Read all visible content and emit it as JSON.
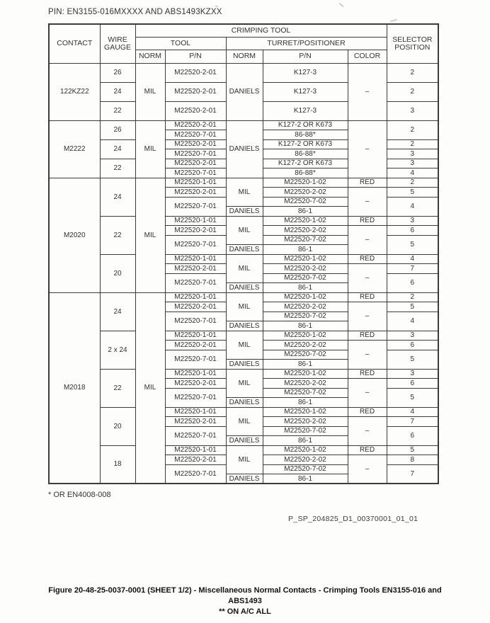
{
  "page": {
    "pin_label": "PIN: EN3155-016MXXXX AND ABS1493KZXX",
    "footnote": "* OR EN4008-008",
    "reference": "P_SP_204825_D1_00370001_01_01",
    "caption_line1": "Figure 20-48-25-0037-0001 (SHEET 1/2) - Miscellaneous Normal Contacts - Crimping Tools EN3155-016 and",
    "caption_line2": "ABS1493",
    "caption_line3": "** ON A/C ALL"
  },
  "table": {
    "header_rows": [
      {
        "h": 18,
        "cells": [
          {
            "t": "CONTACT",
            "rs": 3
          },
          {
            "t": "WIRE\nGAUGE",
            "rs": 3
          },
          {
            "t": "CRIMPING TOOL",
            "cs": 5
          },
          {
            "t": "SELECTOR\nPOSITION",
            "rs": 3
          }
        ]
      },
      {
        "h": 18,
        "cells": [
          {
            "t": "TOOL",
            "cs": 2
          },
          {
            "t": "TURRET/POSITIONER",
            "cs": 3
          }
        ]
      },
      {
        "h": 19,
        "cells": [
          {
            "t": "NORM"
          },
          {
            "t": "P/N"
          },
          {
            "t": "NORM"
          },
          {
            "t": "P/N"
          },
          {
            "t": "COLOR"
          }
        ]
      }
    ],
    "body_rows": [
      {
        "h": 27,
        "cells": [
          {
            "t": "122KZ22",
            "rs": 3
          },
          {
            "t": "26"
          },
          {
            "t": "MIL",
            "rs": 3
          },
          {
            "t": "M22520-2-01"
          },
          {
            "t": "DANIELS",
            "rs": 3
          },
          {
            "t": "K127-3"
          },
          {
            "t": "–",
            "rs": 3
          },
          {
            "t": "2"
          }
        ]
      },
      {
        "h": 27,
        "cells": [
          {
            "t": "24"
          },
          {
            "t": "M22520-2-01"
          },
          {
            "t": "K127-3"
          },
          {
            "t": "2"
          }
        ]
      },
      {
        "h": 27,
        "cells": [
          {
            "t": "22"
          },
          {
            "t": "M22520-2-01"
          },
          {
            "t": "K127-3"
          },
          {
            "t": "3"
          }
        ]
      },
      {
        "cells": [
          {
            "t": "M2222",
            "rs": 6
          },
          {
            "t": "26",
            "rs": 2
          },
          {
            "t": "MIL",
            "rs": 6
          },
          {
            "t": "M22520-2-01"
          },
          {
            "t": "DANIELS",
            "rs": 6
          },
          {
            "t": "K127-2 OR K673"
          },
          {
            "t": "–",
            "rs": 6
          },
          {
            "t": "2",
            "rs": 2
          }
        ]
      },
      {
        "cells": [
          {
            "t": "M22520-7-01"
          },
          {
            "t": "86-88*"
          }
        ]
      },
      {
        "cells": [
          {
            "t": "24",
            "rs": 2
          },
          {
            "t": "M22520-2-01"
          },
          {
            "t": "K127-2 OR K673"
          },
          {
            "t": "2"
          }
        ]
      },
      {
        "cells": [
          {
            "t": "M22520-7-01"
          },
          {
            "t": "86-88*"
          },
          {
            "t": "3"
          }
        ]
      },
      {
        "cells": [
          {
            "t": "22",
            "rs": 2
          },
          {
            "t": "M22520-2-01"
          },
          {
            "t": "K127-2 OR K673"
          },
          {
            "t": "3"
          }
        ]
      },
      {
        "cells": [
          {
            "t": "M22520-7-01"
          },
          {
            "t": "86-88*"
          },
          {
            "t": "4"
          }
        ]
      },
      {
        "cells": [
          {
            "t": "M2020",
            "rs": 12
          },
          {
            "t": "24",
            "rs": 4
          },
          {
            "t": "MIL",
            "rs": 12
          },
          {
            "t": "M22520-1-01"
          },
          {
            "t": "MIL",
            "rs": 3
          },
          {
            "t": "M22520-1-02"
          },
          {
            "t": "RED"
          },
          {
            "t": "2"
          }
        ]
      },
      {
        "cells": [
          {
            "t": "M22520-2-01"
          },
          {
            "t": "M22520-2-02"
          },
          {
            "t": "–",
            "rs": 3
          },
          {
            "t": "5"
          }
        ]
      },
      {
        "cells": [
          {
            "t": "M22520-7-01",
            "rs": 2
          },
          {
            "t": "M22520-7-02"
          },
          {
            "t": "4",
            "rs": 2
          }
        ]
      },
      {
        "cells": [
          {
            "t": "DANIELS"
          },
          {
            "t": "86-1"
          }
        ]
      },
      {
        "cells": [
          {
            "t": "22",
            "rs": 4
          },
          {
            "t": "M22520-1-01"
          },
          {
            "t": "MIL",
            "rs": 3
          },
          {
            "t": "M22520-1-02"
          },
          {
            "t": "RED"
          },
          {
            "t": "3"
          }
        ]
      },
      {
        "cells": [
          {
            "t": "M22520-2-01"
          },
          {
            "t": "M22520-2-02"
          },
          {
            "t": "–",
            "rs": 3
          },
          {
            "t": "6"
          }
        ]
      },
      {
        "cells": [
          {
            "t": "M22520-7-01",
            "rs": 2
          },
          {
            "t": "M22520-7-02"
          },
          {
            "t": "5",
            "rs": 2
          }
        ]
      },
      {
        "cells": [
          {
            "t": "DANIELS"
          },
          {
            "t": "86-1"
          }
        ]
      },
      {
        "cells": [
          {
            "t": "20",
            "rs": 4
          },
          {
            "t": "M22520-1-01"
          },
          {
            "t": "MIL",
            "rs": 3
          },
          {
            "t": "M22520-1-02"
          },
          {
            "t": "RED"
          },
          {
            "t": "4"
          }
        ]
      },
      {
        "cells": [
          {
            "t": "M22520-2-01"
          },
          {
            "t": "M22520-2-02"
          },
          {
            "t": "–",
            "rs": 3
          },
          {
            "t": "7"
          }
        ]
      },
      {
        "cells": [
          {
            "t": "M22520-7-01",
            "rs": 2
          },
          {
            "t": "M22520-7-02"
          },
          {
            "t": "6",
            "rs": 2
          }
        ]
      },
      {
        "cells": [
          {
            "t": "DANIELS"
          },
          {
            "t": "86-1"
          }
        ]
      },
      {
        "cells": [
          {
            "t": "M2018",
            "rs": 20
          },
          {
            "t": "24",
            "rs": 4
          },
          {
            "t": "MIL",
            "rs": 20
          },
          {
            "t": "M22520-1-01"
          },
          {
            "t": "MIL",
            "rs": 3
          },
          {
            "t": "M22520-1-02"
          },
          {
            "t": "RED"
          },
          {
            "t": "2"
          }
        ]
      },
      {
        "cells": [
          {
            "t": "M22520-2-01"
          },
          {
            "t": "M22520-2-02"
          },
          {
            "t": "–",
            "rs": 3
          },
          {
            "t": "5"
          }
        ]
      },
      {
        "cells": [
          {
            "t": "M22520-7-01",
            "rs": 2
          },
          {
            "t": "M22520-7-02"
          },
          {
            "t": "4",
            "rs": 2
          }
        ]
      },
      {
        "cells": [
          {
            "t": "DANIELS"
          },
          {
            "t": "86-1"
          }
        ]
      },
      {
        "cells": [
          {
            "t": "2 x 24",
            "rs": 4
          },
          {
            "t": "M22520-1-01"
          },
          {
            "t": "MIL",
            "rs": 3
          },
          {
            "t": "M22520-1-02"
          },
          {
            "t": "RED"
          },
          {
            "t": "3"
          }
        ]
      },
      {
        "cells": [
          {
            "t": "M22520-2-01"
          },
          {
            "t": "M22520-2-02"
          },
          {
            "t": "–",
            "rs": 3
          },
          {
            "t": "6"
          }
        ]
      },
      {
        "cells": [
          {
            "t": "M22520-7-01",
            "rs": 2
          },
          {
            "t": "M22520-7-02"
          },
          {
            "t": "5",
            "rs": 2
          }
        ]
      },
      {
        "cells": [
          {
            "t": "DANIELS"
          },
          {
            "t": "86-1"
          }
        ]
      },
      {
        "cells": [
          {
            "t": "22",
            "rs": 4
          },
          {
            "t": "M22520-1-01"
          },
          {
            "t": "MIL",
            "rs": 3
          },
          {
            "t": "M22520-1-02"
          },
          {
            "t": "RED"
          },
          {
            "t": "3"
          }
        ]
      },
      {
        "cells": [
          {
            "t": "M22520-2-01"
          },
          {
            "t": "M22520-2-02"
          },
          {
            "t": "–",
            "rs": 3
          },
          {
            "t": "6"
          }
        ]
      },
      {
        "cells": [
          {
            "t": "M22520-7-01",
            "rs": 2
          },
          {
            "t": "M22520-7-02"
          },
          {
            "t": "5",
            "rs": 2
          }
        ]
      },
      {
        "cells": [
          {
            "t": "DANIELS"
          },
          {
            "t": "86-1"
          }
        ]
      },
      {
        "cells": [
          {
            "t": "20",
            "rs": 4
          },
          {
            "t": "M22520-1-01"
          },
          {
            "t": "MIL",
            "rs": 3
          },
          {
            "t": "M22520-1-02"
          },
          {
            "t": "RED"
          },
          {
            "t": "4"
          }
        ]
      },
      {
        "cells": [
          {
            "t": "M22520-2-01"
          },
          {
            "t": "M22520-2-02"
          },
          {
            "t": "–",
            "rs": 3
          },
          {
            "t": "7"
          }
        ]
      },
      {
        "cells": [
          {
            "t": "M22520-7-01",
            "rs": 2
          },
          {
            "t": "M22520-7-02"
          },
          {
            "t": "6",
            "rs": 2
          }
        ]
      },
      {
        "cells": [
          {
            "t": "DANIELS"
          },
          {
            "t": "86-1"
          }
        ]
      },
      {
        "cells": [
          {
            "t": "18",
            "rs": 4
          },
          {
            "t": "M22520-1-01"
          },
          {
            "t": "MIL",
            "rs": 3
          },
          {
            "t": "M22520-1-02"
          },
          {
            "t": "RED"
          },
          {
            "t": "5"
          }
        ]
      },
      {
        "cells": [
          {
            "t": "M22520-2-01"
          },
          {
            "t": "M22520-2-02"
          },
          {
            "t": "–",
            "rs": 3
          },
          {
            "t": "8"
          }
        ]
      },
      {
        "cells": [
          {
            "t": "M22520-7-01",
            "rs": 2
          },
          {
            "t": "M22520-7-02"
          },
          {
            "t": "7",
            "rs": 2
          }
        ]
      },
      {
        "cells": [
          {
            "t": "DANIELS"
          },
          {
            "t": "86-1"
          }
        ]
      }
    ]
  }
}
